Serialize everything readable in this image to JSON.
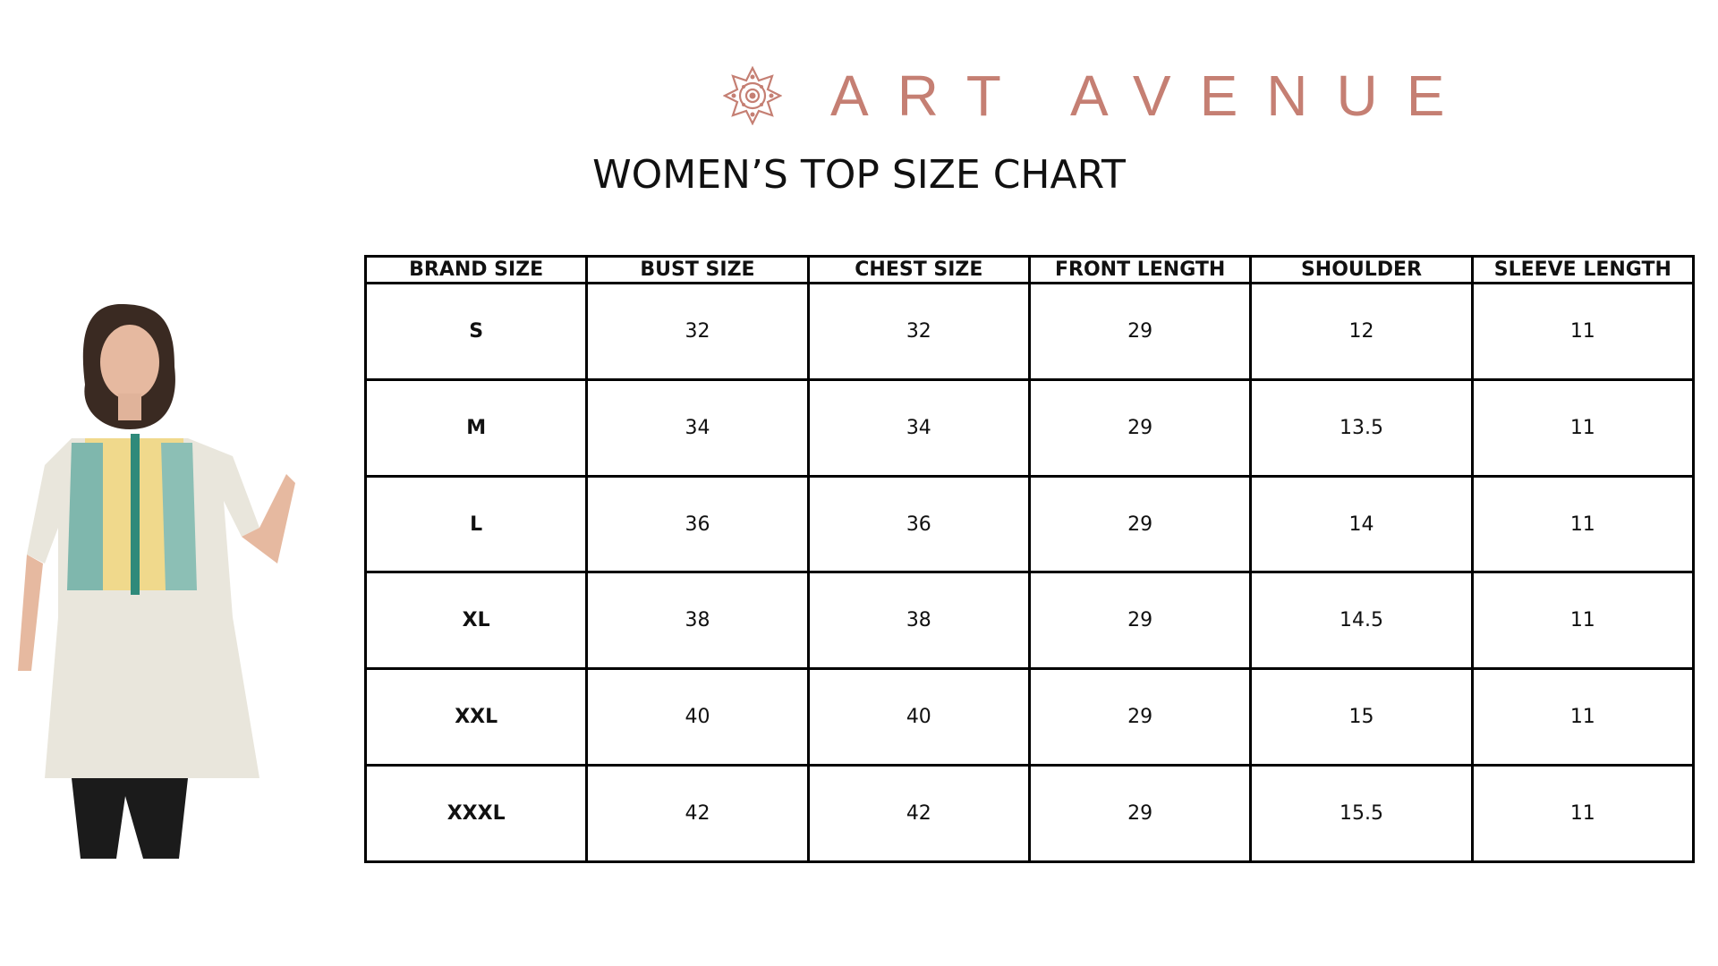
{
  "brand": {
    "name": "ART AVENUE",
    "logo_icon": "mandala-icon",
    "color": "#c57f73"
  },
  "title": "WOMEN’S TOP SIZE CHART",
  "table": {
    "headers": [
      "BRAND SIZE",
      "BUST SIZE",
      "CHEST SIZE",
      "FRONT LENGTH",
      "SHOULDER",
      "SLEEVE LENGTH"
    ],
    "rows": [
      [
        "S",
        "32",
        "32",
        "29",
        "12",
        "11"
      ],
      [
        "M",
        "34",
        "34",
        "29",
        "13.5",
        "11"
      ],
      [
        "L",
        "36",
        "36",
        "29",
        "14",
        "11"
      ],
      [
        "XL",
        "38",
        "38",
        "29",
        "14.5",
        "11"
      ],
      [
        "XXL",
        "40",
        "40",
        "29",
        "15",
        "11"
      ],
      [
        "XXXL",
        "42",
        "42",
        "29",
        "15.5",
        "11"
      ]
    ]
  }
}
